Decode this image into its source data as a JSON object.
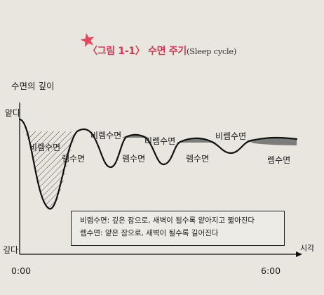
{
  "figure": {
    "title_korean": "〈그림 1-1〉 수면 주기",
    "title_english": "(Sleep cycle)",
    "y_axis_label": "수면의 깊이",
    "y_top_label": "얕다",
    "y_bottom_label": "깊다",
    "x_axis_label": "시각",
    "x_start_label": "0:00",
    "x_end_label": "6:00",
    "stage_labels": {
      "nonrem_1": "비렘수면",
      "nonrem_2": "비렘수면",
      "nonrem_3": "비렘수면",
      "nonrem_4": "비렘수면",
      "rem_1": "렘수면",
      "rem_2": "렘수면",
      "rem_3": "렘수면",
      "rem_4": "렘수면"
    },
    "legend": {
      "line1": "비렘수면: 깊은 잠으로, 새벽이 될수록 얕아지고 짧아진다",
      "line2": "렘수면: 얕은 잠으로, 새벽이 될수록 길어진다"
    },
    "colors": {
      "title": "#d13a57",
      "star": "#e0485f",
      "rem_fill": "#7c7c7a"
    }
  }
}
